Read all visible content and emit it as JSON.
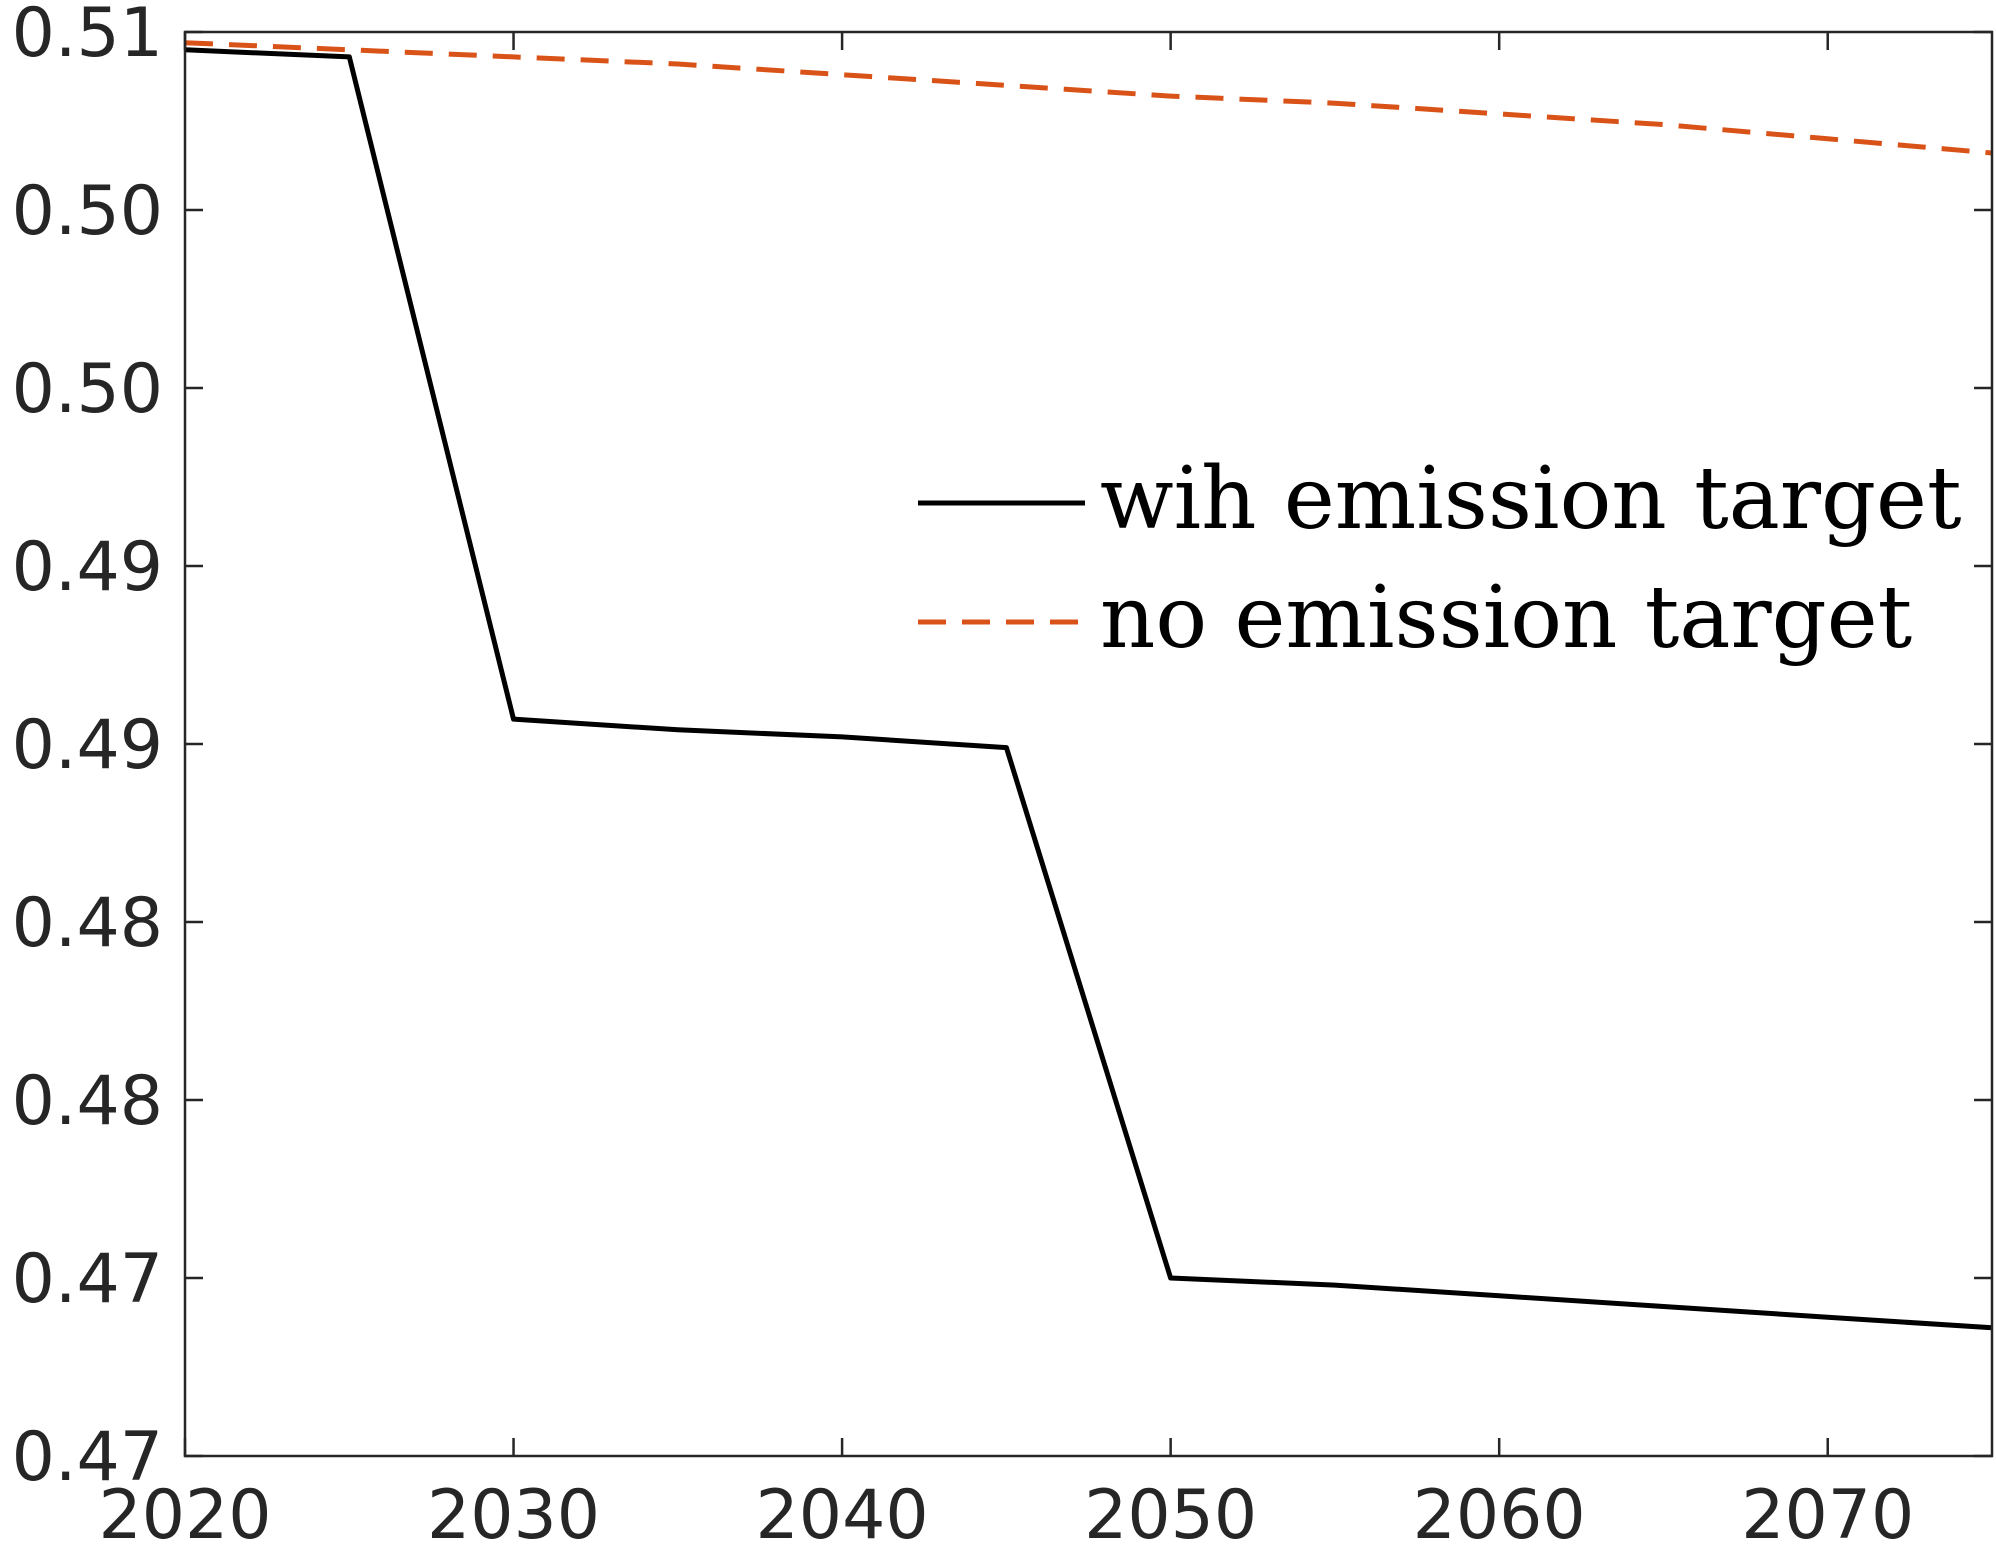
{
  "chart_data": {
    "type": "line",
    "title": "",
    "xlabel": "",
    "ylabel": "",
    "x": [
      2020,
      2025,
      2030,
      2035,
      2040,
      2045,
      2050,
      2055,
      2060,
      2065,
      2070,
      2075
    ],
    "series": [
      {
        "name": "wih emission target",
        "color": "#000000",
        "dash": "solid",
        "values": [
          0.5095,
          0.5093,
          0.4907,
          0.4904,
          0.4902,
          0.4899,
          0.475,
          0.4748,
          0.4745,
          0.4742,
          0.4739,
          0.4736
        ]
      },
      {
        "name": "no emission target",
        "color": "#D95319",
        "dash": "dashed",
        "values": [
          0.5097,
          0.5095,
          0.5093,
          0.5091,
          0.5088,
          0.5085,
          0.5082,
          0.508,
          0.5077,
          0.5074,
          0.507,
          0.5066
        ]
      }
    ],
    "xlim": [
      2020,
      2075
    ],
    "ylim": [
      0.47,
      0.51
    ],
    "x_ticks": [
      2020,
      2030,
      2040,
      2050,
      2060,
      2070
    ],
    "x_tick_labels": [
      "2020",
      "2030",
      "2040",
      "2050",
      "2060",
      "2070"
    ],
    "y_ticks": [
      0.47,
      0.475,
      0.48,
      0.485,
      0.49,
      0.495,
      0.5,
      0.505,
      0.51
    ],
    "y_tick_labels": [
      "0.47",
      "0.47",
      "0.48",
      "0.48",
      "0.49",
      "0.49",
      "0.50",
      "0.50",
      "0.51"
    ],
    "grid": false,
    "legend_position": "center-right"
  }
}
